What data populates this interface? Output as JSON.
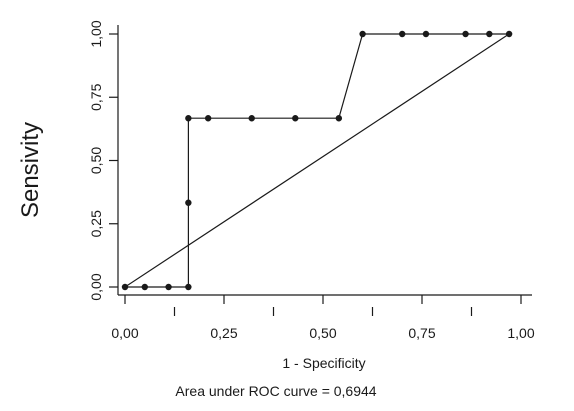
{
  "chart_data": {
    "type": "line",
    "title": "",
    "xlabel": "1 - Specificity",
    "ylabel": "Sensivity",
    "xlim": [
      0,
      1
    ],
    "ylim": [
      0,
      1
    ],
    "x_ticks": [
      "0,00",
      "0,25",
      "0,50",
      "0,75",
      "1,00"
    ],
    "y_ticks": [
      "0,00",
      "0,25",
      "0,50",
      "0,75",
      "1,00"
    ],
    "grid": false,
    "legend": "none",
    "annotation": "Area under ROC curve = 0,6944",
    "series": [
      {
        "role": "roc-curve",
        "x": [
          0.0,
          0.05,
          0.11,
          0.16,
          0.16,
          0.16,
          0.21,
          0.32,
          0.43,
          0.54,
          0.6,
          0.7,
          0.76,
          0.86,
          0.92,
          0.97
        ],
        "y": [
          0.0,
          0.0,
          0.0,
          0.0,
          0.333,
          0.667,
          0.667,
          0.667,
          0.667,
          0.667,
          1.0,
          1.0,
          1.0,
          1.0,
          1.0,
          1.0
        ]
      },
      {
        "role": "reference-line",
        "x": [
          0.0,
          0.97
        ],
        "y": [
          0.0,
          1.0
        ]
      }
    ],
    "colors": {
      "ink": "#1a1a1a",
      "background": "#ffffff"
    }
  }
}
